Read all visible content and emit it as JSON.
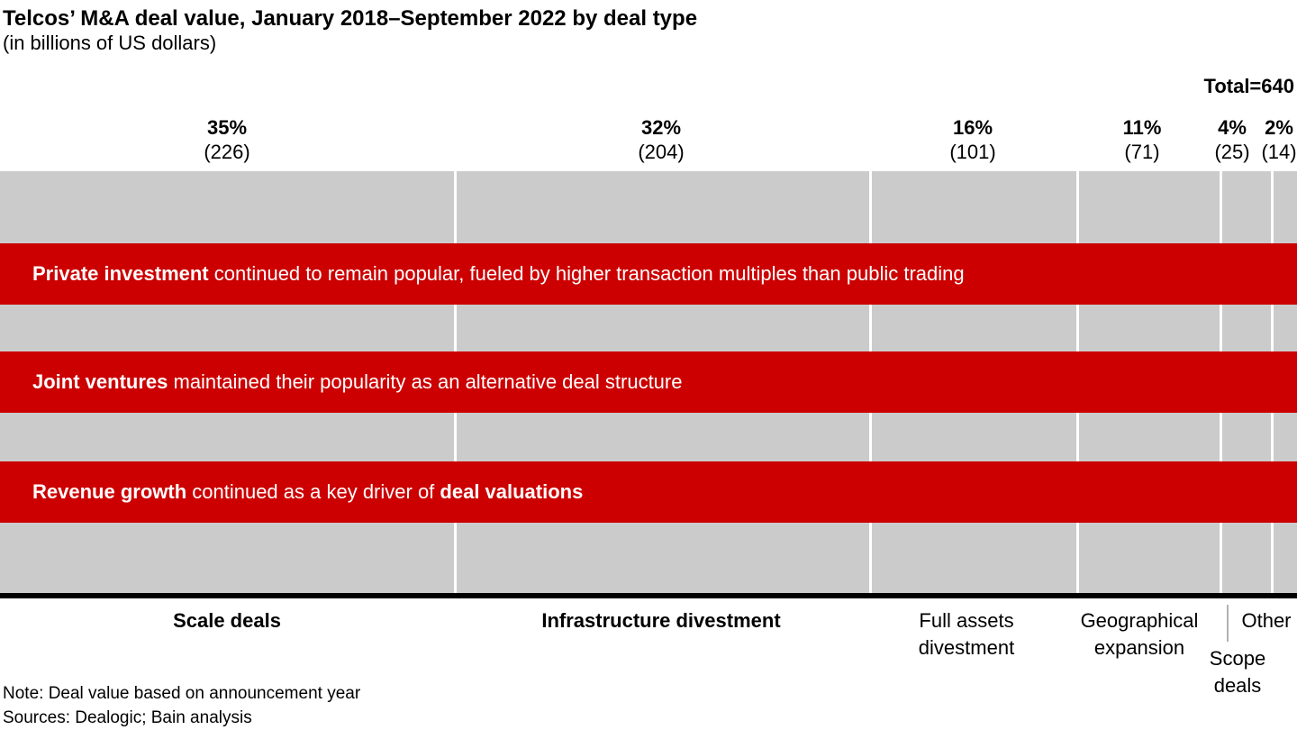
{
  "title": "Telcos’ M&A deal value, January 2018–September 2022 by deal type",
  "subtitle": "(in billions of US dollars)",
  "total_label": "Total=640",
  "chart_data": {
    "type": "bar",
    "orientation": "horizontal-stacked-100pct",
    "title": "Telcos’ M&A deal value, January 2018–September 2022 by deal type",
    "unit": "billions of US dollars",
    "total": 640,
    "categories": [
      "Scale deals",
      "Infrastructure divestment",
      "Full assets divestment",
      "Geographical expansion",
      "Scope deals",
      "Other"
    ],
    "percents": [
      35,
      32,
      16,
      11,
      4,
      2
    ],
    "values": [
      226,
      204,
      101,
      71,
      25,
      14
    ],
    "percent_labels": [
      "35%",
      "32%",
      "16%",
      "11%",
      "4%",
      "2%"
    ],
    "value_labels": [
      "(226)",
      "(204)",
      "(101)",
      "(71)",
      "(25)",
      "(14)"
    ],
    "bar_color": "#cbcbcb",
    "band_color": "#cc0000",
    "axis_color": "#000000",
    "legend": "none",
    "grid": "off"
  },
  "callouts": [
    {
      "bold": "Private investment",
      "rest": " continued to remain popular, fueled by higher transaction multiples than public trading"
    },
    {
      "bold": "Joint ventures",
      "rest": " maintained their popularity as an alternative deal structure"
    },
    {
      "bold": "Revenue growth",
      "rest": " continued as a key driver of ",
      "bold2": "deal valuations"
    }
  ],
  "notes": {
    "note": "Note: Deal value based on announcement year",
    "sources": "Sources: Dealogic; Bain analysis"
  }
}
